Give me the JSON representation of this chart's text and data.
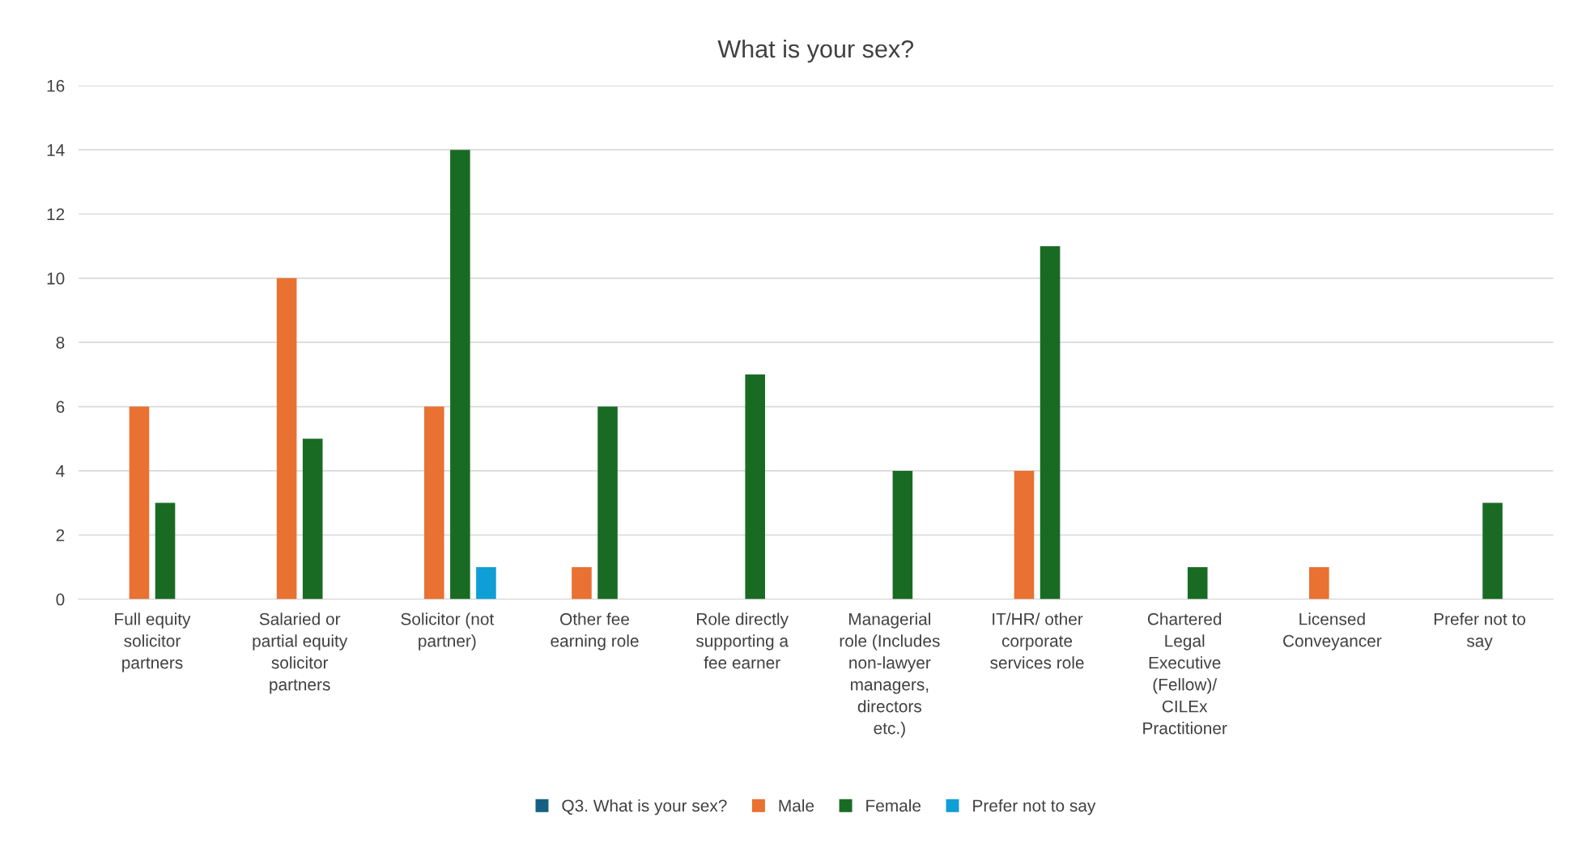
{
  "chart_data": {
    "type": "bar",
    "title": "What is your sex?",
    "categories": [
      "Full equity solicitor partners",
      "Salaried or partial equity solicitor partners",
      "Solicitor (not partner)",
      "Other fee earning role",
      "Role directly supporting a fee earner",
      "Managerial role (Includes non-lawyer managers, directors etc.)",
      "IT/HR/ other corporate services role",
      "Chartered Legal Executive (Fellow)/ CILEx Practitioner",
      "Licensed Conveyancer",
      "Prefer not to say"
    ],
    "series": [
      {
        "name": "Q3. What is your sex?",
        "color": "#156082",
        "values": [
          null,
          null,
          null,
          null,
          null,
          null,
          null,
          null,
          null,
          null
        ]
      },
      {
        "name": "Male",
        "color": "#e97132",
        "values": [
          6,
          10,
          6,
          1,
          null,
          null,
          4,
          null,
          1,
          null
        ]
      },
      {
        "name": "Female",
        "color": "#196b24",
        "values": [
          3,
          5,
          14,
          6,
          7,
          4,
          11,
          1,
          null,
          3
        ]
      },
      {
        "name": "Prefer not to say",
        "color": "#0f9ed5",
        "values": [
          null,
          null,
          1,
          null,
          null,
          null,
          null,
          null,
          null,
          null
        ]
      }
    ],
    "ylim": [
      0,
      16
    ],
    "yticks": [
      0,
      2,
      4,
      6,
      8,
      10,
      12,
      14,
      16
    ],
    "grid": "y",
    "legend": "bottom"
  }
}
